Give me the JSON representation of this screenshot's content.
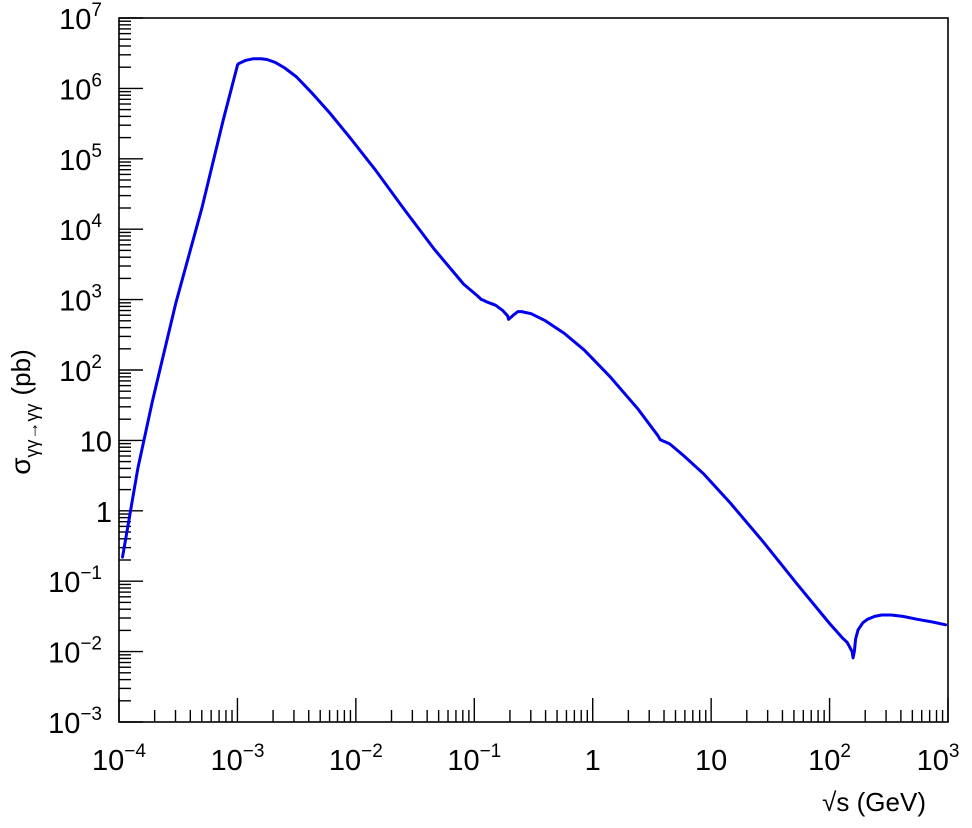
{
  "chart_data": {
    "type": "line",
    "xlabel": "√s (GeV)",
    "ylabel": "σγγ→γγ (pb)",
    "ylabel_main": "σ",
    "ylabel_sub": "γγ→γγ",
    "ylabel_unit": "(pb)",
    "xscale": "log",
    "yscale": "log",
    "xlim": [
      0.0001,
      1000
    ],
    "ylim": [
      0.001,
      10000000
    ],
    "grid": false,
    "x_ticks": [
      {
        "value": 0.0001,
        "base": "10",
        "exp": "−4"
      },
      {
        "value": 0.001,
        "base": "10",
        "exp": "−3"
      },
      {
        "value": 0.01,
        "base": "10",
        "exp": "−2"
      },
      {
        "value": 0.1,
        "base": "10",
        "exp": "−1"
      },
      {
        "value": 1,
        "base": "1",
        "exp": ""
      },
      {
        "value": 10,
        "base": "10",
        "exp": ""
      },
      {
        "value": 100,
        "base": "10",
        "exp": "2"
      },
      {
        "value": 1000,
        "base": "10",
        "exp": "3"
      }
    ],
    "y_ticks": [
      {
        "value": 0.001,
        "base": "10",
        "exp": "−3"
      },
      {
        "value": 0.01,
        "base": "10",
        "exp": "−2"
      },
      {
        "value": 0.1,
        "base": "10",
        "exp": "−1"
      },
      {
        "value": 1,
        "base": "1",
        "exp": ""
      },
      {
        "value": 10,
        "base": "10",
        "exp": ""
      },
      {
        "value": 100,
        "base": "10",
        "exp": "2"
      },
      {
        "value": 1000,
        "base": "10",
        "exp": "3"
      },
      {
        "value": 10000,
        "base": "10",
        "exp": "4"
      },
      {
        "value": 100000,
        "base": "10",
        "exp": "5"
      },
      {
        "value": 1000000,
        "base": "10",
        "exp": "6"
      },
      {
        "value": 10000000,
        "base": "10",
        "exp": "7"
      }
    ],
    "series": [
      {
        "color": "#0000ee",
        "x": [
          0.000107,
          0.000118,
          0.000144,
          0.000191,
          0.000302,
          0.000501,
          0.000759,
          0.000955,
          0.000998,
          0.001,
          0.00102,
          0.00118,
          0.00135,
          0.00158,
          0.00178,
          0.00209,
          0.00251,
          0.00316,
          0.00417,
          0.00603,
          0.00891,
          0.0145,
          0.0251,
          0.0457,
          0.0813,
          0.107,
          0.115,
          0.12,
          0.126,
          0.151,
          0.174,
          0.191,
          0.195,
          0.204,
          0.214,
          0.234,
          0.251,
          0.302,
          0.398,
          0.575,
          0.851,
          1.41,
          2.4,
          3.55,
          3.72,
          4.47,
          5.89,
          8.71,
          14.5,
          27.5,
          53.7,
          100,
          129,
          141,
          155,
          158,
          162,
          166,
          174,
          191,
          209,
          240,
          275,
          331,
          417,
          550,
          741,
          955
        ],
        "y": [
          0.22,
          0.56,
          3.98,
          35.5,
          891,
          20000,
          355000,
          1580000,
          2090000,
          2140000,
          2240000,
          2510000,
          2630000,
          2630000,
          2570000,
          2340000,
          1950000,
          1450000,
          891000,
          447000,
          200000,
          70800,
          20000,
          5250,
          1660,
          1120,
          1000,
          977,
          933,
          832,
          698,
          589,
          525,
          562,
          603,
          676,
          676,
          631,
          501,
          331,
          191,
          79.4,
          28.2,
          11.7,
          10.2,
          8.91,
          6.03,
          3.31,
          1.29,
          0.363,
          0.0891,
          0.0251,
          0.0155,
          0.0135,
          0.01,
          0.00813,
          0.0102,
          0.0151,
          0.0204,
          0.0257,
          0.0288,
          0.0316,
          0.0331,
          0.0331,
          0.0316,
          0.0288,
          0.0263,
          0.024
        ]
      }
    ]
  }
}
